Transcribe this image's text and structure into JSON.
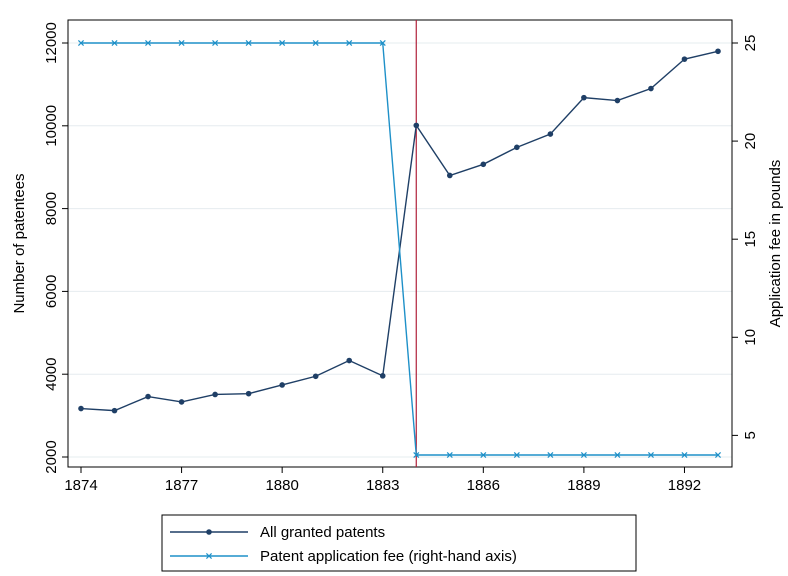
{
  "chart_data": {
    "type": "line",
    "x": [
      1874,
      1875,
      1876,
      1877,
      1878,
      1879,
      1880,
      1881,
      1882,
      1883,
      1884,
      1885,
      1886,
      1887,
      1888,
      1889,
      1890,
      1891,
      1892,
      1893
    ],
    "series": [
      {
        "name": "All granted patents",
        "axis": "left",
        "color": "#1f3f66",
        "marker": "dot",
        "values": [
          3170,
          3120,
          3460,
          3330,
          3510,
          3530,
          3740,
          3950,
          4330,
          3960,
          10010,
          8800,
          9070,
          9480,
          9800,
          10680,
          10610,
          10900,
          11610,
          11800
        ]
      },
      {
        "name": "Patent application fee (right-hand axis)",
        "axis": "right",
        "color": "#1e90c8",
        "marker": "x",
        "values": [
          25,
          25,
          25,
          25,
          25,
          25,
          25,
          25,
          25,
          25,
          4,
          4,
          4,
          4,
          4,
          4,
          4,
          4,
          4,
          4
        ]
      }
    ],
    "xticks": [
      1874,
      1877,
      1880,
      1883,
      1886,
      1889,
      1892
    ],
    "xlim": [
      1874,
      1893
    ],
    "ylabel_left": "Number of patentees",
    "yticks_left": [
      2000,
      4000,
      6000,
      8000,
      10000,
      12000
    ],
    "ylim_left": [
      2000,
      12000
    ],
    "ylabel_right": "Application fee in pounds",
    "yticks_right": [
      5,
      10,
      15,
      20,
      25
    ],
    "ylim_right": [
      4,
      25
    ],
    "vline_x": 1884,
    "vline_color": "#b0203a",
    "grid": true,
    "legend": "bottom"
  }
}
